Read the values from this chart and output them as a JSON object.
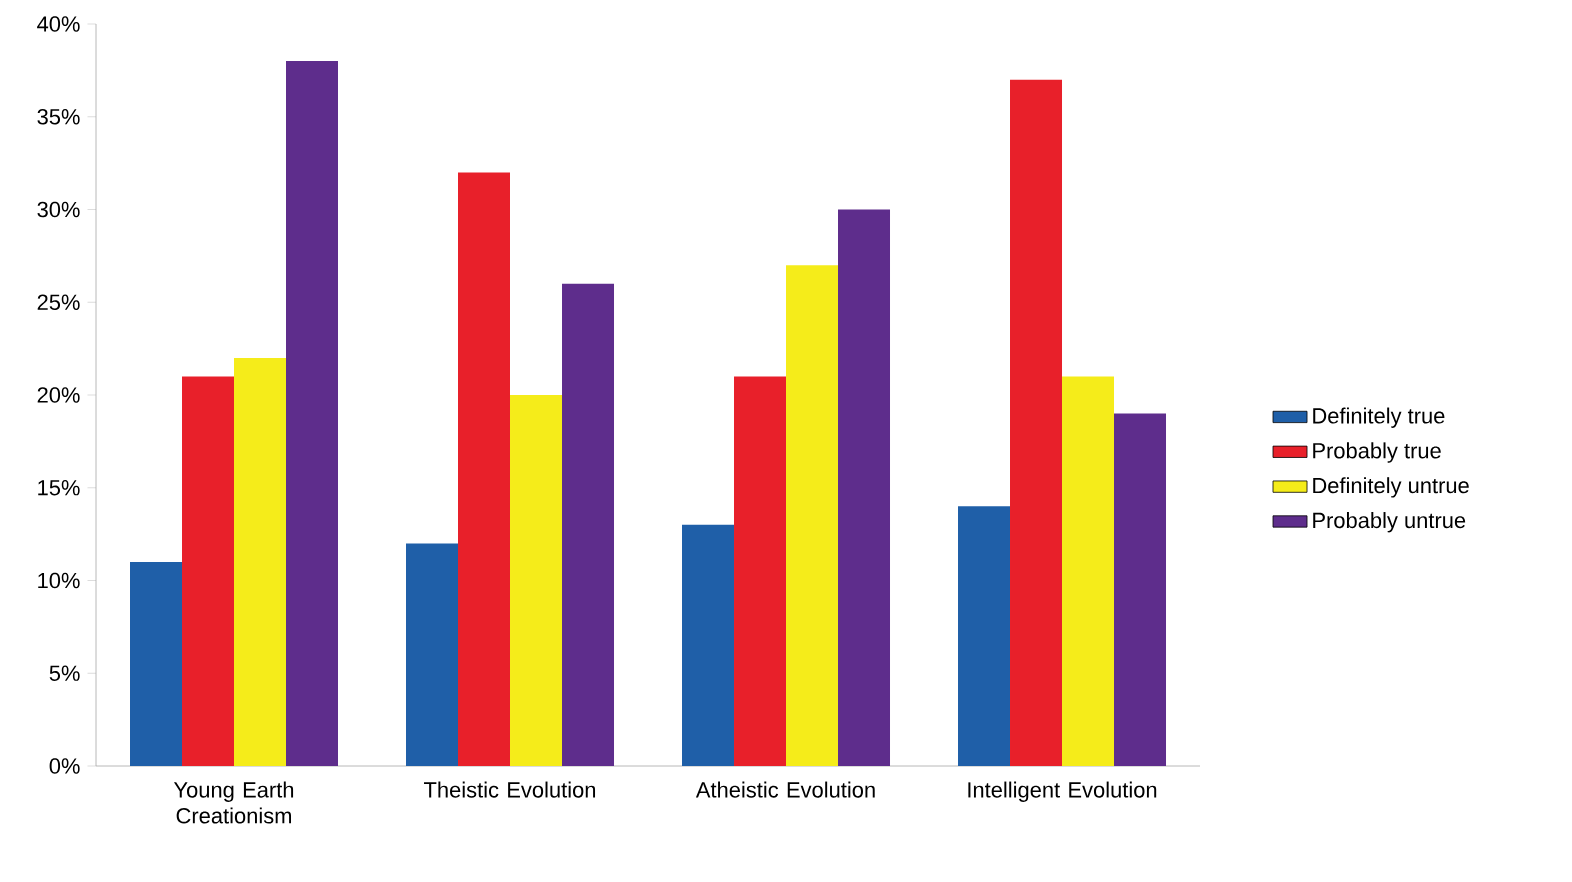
{
  "chart_data": {
    "type": "bar",
    "categories": [
      "Young Earth Creationism",
      "Theistic Evolution",
      "Atheistic Evolution",
      "Intelligent Evolution"
    ],
    "series": [
      {
        "name": "Definitely true",
        "color": "#1f5fa8",
        "values": [
          11,
          12,
          13,
          14
        ]
      },
      {
        "name": "Probably true",
        "color": "#e8202a",
        "values": [
          21,
          32,
          21,
          37
        ]
      },
      {
        "name": "Definitely untrue",
        "color": "#f5ec1a",
        "values": [
          22,
          20,
          27,
          21
        ]
      },
      {
        "name": "Probably untrue",
        "color": "#5e2d8c",
        "values": [
          38,
          26,
          30,
          19
        ]
      }
    ],
    "ylim": [
      0,
      40
    ],
    "yticks": [
      {
        "value": 0,
        "label": "0%"
      },
      {
        "value": 5,
        "label": "5%"
      },
      {
        "value": 10,
        "label": "10%"
      },
      {
        "value": 15,
        "label": "15%"
      },
      {
        "value": 20,
        "label": "20%"
      },
      {
        "value": 25,
        "label": "25%"
      },
      {
        "value": 30,
        "label": "30%"
      },
      {
        "value": 35,
        "label": "35%"
      },
      {
        "value": 40,
        "label": "40%"
      }
    ],
    "grid": false,
    "legend": "right"
  }
}
